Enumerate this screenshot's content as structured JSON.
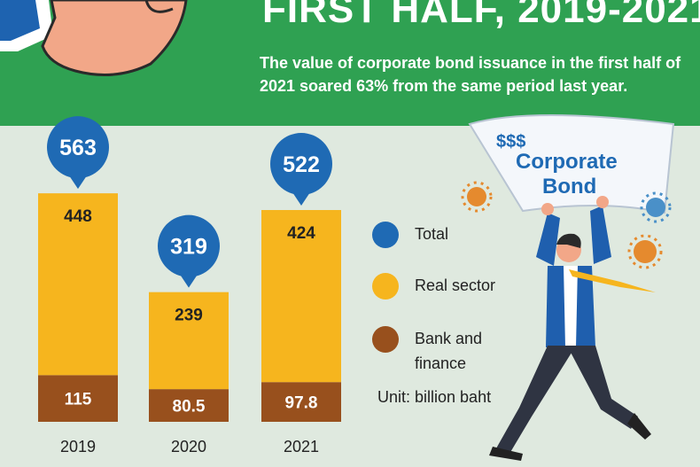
{
  "header": {
    "title": "FIRST HALF, 2019-2021",
    "subtitle": "The value of corporate bond issuance in the first half of 2021 soared 63% from the same period last year."
  },
  "chart_data": {
    "type": "bar",
    "stacked": true,
    "categories": [
      "2019",
      "2020",
      "2021"
    ],
    "series": [
      {
        "name": "Bank and finance",
        "values": [
          115,
          80.5,
          97.8
        ],
        "color": "#98501d"
      },
      {
        "name": "Real sector",
        "values": [
          448,
          239,
          424
        ],
        "color": "#f6b51e"
      }
    ],
    "totals": {
      "name": "Total",
      "values": [
        563,
        319,
        522
      ],
      "color": "#1f6ab4"
    },
    "value_labels": {
      "bank": [
        "115",
        "80.5",
        "97.8"
      ],
      "real": [
        "448",
        "239",
        "424"
      ],
      "total": [
        "563",
        "319",
        "522"
      ]
    },
    "unit": "billion baht"
  },
  "legend": {
    "items": [
      {
        "label": "Total",
        "color": "#1f6ab4"
      },
      {
        "label": "Real sector",
        "color": "#f6b51e"
      },
      {
        "label": "Bank and\nfinance",
        "color": "#98501d"
      }
    ],
    "unit_label": "Unit: billion baht"
  },
  "illustration": {
    "sign_top": "$$$",
    "sign_line1": "Corporate",
    "sign_line2": "Bond"
  },
  "colors": {
    "header_green": "#2fa152",
    "background": "#dfe9df",
    "total_blue": "#1f6ab4",
    "real_yellow": "#f6b51e",
    "bank_brown": "#98501d"
  }
}
